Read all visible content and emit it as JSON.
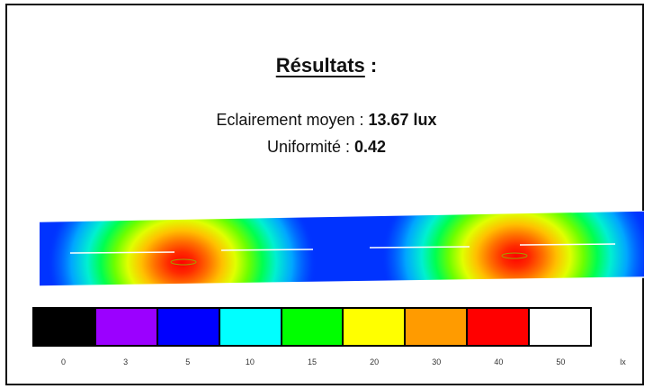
{
  "results": {
    "title": "Résultats",
    "title_suffix": " :",
    "avg_label": "Eclairement moyen : ",
    "avg_value": "13.67 lux",
    "uniformity_label": "Uniformité : ",
    "uniformity_value": "0.42"
  },
  "legend": {
    "items": [
      {
        "color": "#000000",
        "label": "0"
      },
      {
        "color": "#9b00ff",
        "label": "3"
      },
      {
        "color": "#0000ff",
        "label": "5"
      },
      {
        "color": "#00ffff",
        "label": "10"
      },
      {
        "color": "#00ff00",
        "label": "15"
      },
      {
        "color": "#ffff00",
        "label": "20"
      },
      {
        "color": "#ff9b00",
        "label": "30"
      },
      {
        "color": "#ff0000",
        "label": "40"
      },
      {
        "color": "#ffffff",
        "label": "50"
      }
    ],
    "unit": "lx"
  }
}
